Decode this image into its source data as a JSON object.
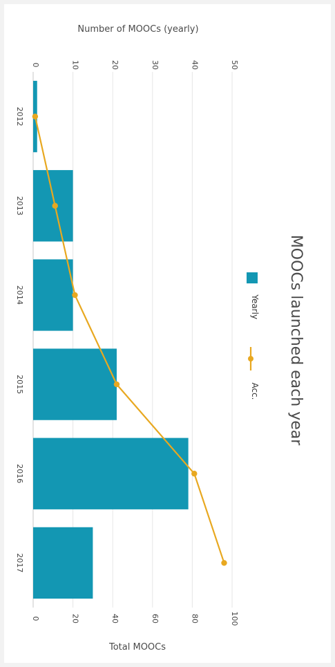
{
  "chart_data": {
    "type": "bar",
    "title": "MOOCs launched each year",
    "categories": [
      "2012",
      "2013",
      "2014",
      "2015",
      "2016",
      "2017"
    ],
    "series": [
      {
        "name": "Yearly",
        "type": "bar",
        "axis": "left",
        "values": [
          1,
          10,
          10,
          21,
          39,
          15
        ]
      },
      {
        "name": "Acc.",
        "type": "line",
        "axis": "right",
        "values": [
          1,
          11,
          21,
          42,
          81,
          96
        ]
      }
    ],
    "left_axis": {
      "label": "Number of MOOCs (yearly)",
      "range": [
        0,
        50
      ],
      "ticks": [
        "0",
        "10",
        "20",
        "30",
        "40",
        "50"
      ]
    },
    "right_axis": {
      "label": "Total MOOCs",
      "range": [
        0,
        100
      ],
      "ticks": [
        "0",
        "20",
        "40",
        "60",
        "80",
        "100"
      ]
    },
    "grid": true,
    "legend_position": "top-right",
    "orientation": "rotated 90 degrees clockwise",
    "colors": {
      "bar": "#1397b3",
      "line": "#e8a820",
      "grid": "#e6e6e6"
    }
  }
}
